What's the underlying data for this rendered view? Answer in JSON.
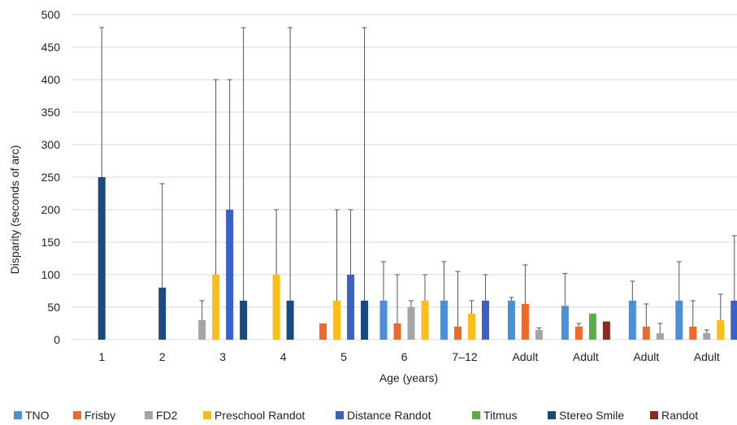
{
  "chart_data": {
    "type": "bar",
    "title": "",
    "xlabel": "Age (years)",
    "ylabel": "Disparity (seconds of arc)",
    "ylim": [
      0,
      500
    ],
    "yticks": [
      0,
      50,
      100,
      150,
      200,
      250,
      300,
      350,
      400,
      450,
      500
    ],
    "grid": true,
    "legend_position": "bottom",
    "categories": [
      "1",
      "2",
      "3",
      "4",
      "5",
      "6",
      "7–12",
      "Adult",
      "Adult",
      "Adult",
      "Adult"
    ],
    "series": [
      {
        "name": "TNO",
        "color": "#4a90d9",
        "values": [
          null,
          null,
          null,
          null,
          null,
          60,
          60,
          60,
          52,
          60,
          60
        ],
        "error_upper": [
          null,
          null,
          null,
          null,
          null,
          120,
          120,
          65,
          102,
          90,
          120
        ]
      },
      {
        "name": "Frisby",
        "color": "#ee6a2a",
        "values": [
          null,
          null,
          null,
          null,
          25,
          25,
          20,
          55,
          20,
          20,
          20
        ],
        "error_upper": [
          null,
          null,
          null,
          null,
          null,
          100,
          105,
          115,
          25,
          55,
          60
        ]
      },
      {
        "name": "FD2",
        "color": "#a5a5a5",
        "values": [
          null,
          null,
          30,
          null,
          null,
          50,
          null,
          15,
          null,
          10,
          10
        ],
        "error_upper": [
          null,
          null,
          60,
          null,
          null,
          60,
          null,
          18,
          null,
          25,
          15
        ]
      },
      {
        "name": "Preschool Randot",
        "color": "#fbbd1a",
        "values": [
          null,
          null,
          100,
          100,
          60,
          60,
          40,
          null,
          null,
          null,
          30
        ],
        "error_upper": [
          null,
          null,
          400,
          200,
          200,
          100,
          60,
          null,
          null,
          null,
          70
        ]
      },
      {
        "name": "Distance Randot",
        "color": "#3a62c6",
        "values": [
          null,
          null,
          200,
          null,
          100,
          null,
          60,
          null,
          null,
          null,
          60
        ],
        "error_upper": [
          null,
          null,
          400,
          null,
          200,
          null,
          100,
          null,
          null,
          null,
          160
        ]
      },
      {
        "name": "Titmus",
        "color": "#5aae47",
        "values": [
          null,
          null,
          null,
          null,
          null,
          null,
          null,
          null,
          40,
          null,
          null
        ],
        "error_upper": [
          null,
          null,
          null,
          null,
          null,
          null,
          null,
          null,
          null,
          null,
          null
        ]
      },
      {
        "name": "Stereo Smile",
        "color": "#1a4a82",
        "values": [
          250,
          80,
          60,
          60,
          60,
          null,
          null,
          null,
          null,
          null,
          null
        ],
        "error_upper": [
          480,
          240,
          480,
          480,
          480,
          null,
          null,
          null,
          null,
          null,
          null
        ]
      },
      {
        "name": "Randot",
        "color": "#8b2a1e",
        "values": [
          null,
          null,
          null,
          null,
          null,
          null,
          null,
          null,
          28,
          null,
          null
        ],
        "error_upper": [
          null,
          null,
          null,
          null,
          null,
          null,
          null,
          null,
          null,
          null,
          null
        ]
      }
    ]
  }
}
